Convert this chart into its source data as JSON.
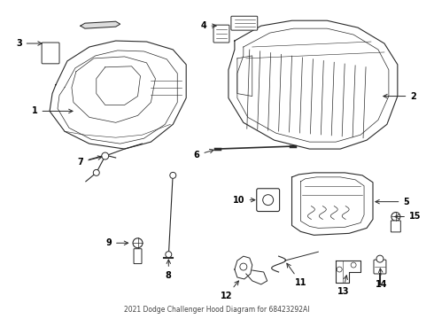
{
  "title": "2021 Dodge Challenger Hood Diagram for 68423292AI",
  "bg_color": "#ffffff",
  "line_color": "#2a2a2a",
  "label_color": "#000000",
  "figsize": [
    4.9,
    3.6
  ],
  "dpi": 100
}
